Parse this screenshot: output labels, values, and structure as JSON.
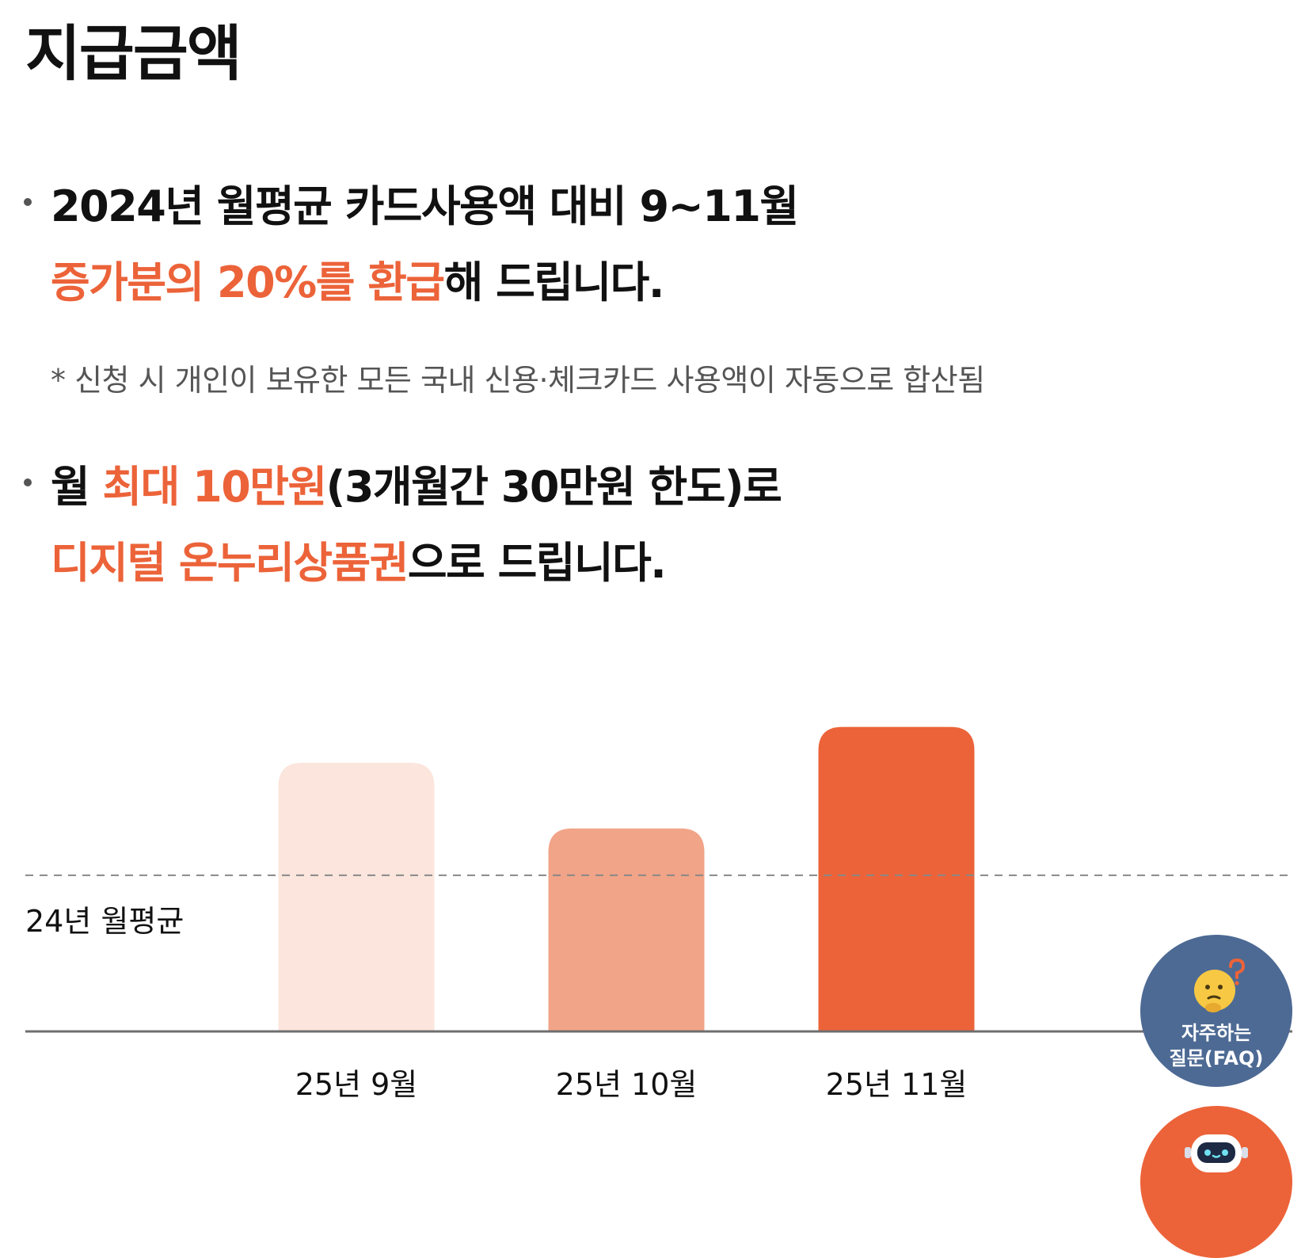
{
  "page": {
    "title": "지급금액"
  },
  "bullets": [
    {
      "line1": [
        {
          "text": "2024년 월평균 카드사용액 대비 9~11월",
          "highlight": false
        }
      ],
      "line2": [
        {
          "text": "증가분의 20%를 환급",
          "highlight": true
        },
        {
          "text": "해 드립니다.",
          "highlight": false
        }
      ]
    },
    {
      "line1": [
        {
          "text": "월 ",
          "highlight": false
        },
        {
          "text": "최대 10만원",
          "highlight": true
        },
        {
          "text": "(3개월간 30만원 한도)로",
          "highlight": false
        }
      ],
      "line2": [
        {
          "text": "디지털 온누리상품권",
          "highlight": true
        },
        {
          "text": "으로 드립니다.",
          "highlight": false
        }
      ]
    }
  ],
  "note": "* 신청 시 개인이 보유한 모든 국내 신용·체크카드 사용액이 자동으로 합산됨",
  "chart_data": {
    "type": "bar",
    "categories": [
      "25년 9월",
      "25년 10월",
      "25년 11월"
    ],
    "values": [
      172,
      130,
      195
    ],
    "reference_line": {
      "label": "24년 월평균",
      "value": 100,
      "style": "dashed"
    },
    "ylim": [
      0,
      210
    ],
    "bar_colors": [
      "#FBE5DC",
      "#F1A488",
      "#EC6339"
    ],
    "grid": false,
    "axis_ticks_shown": false
  },
  "faq": {
    "label_line1": "자주하는",
    "label_line2": "질문(FAQ)",
    "icon": "thinking-face-icon"
  },
  "chatbot": {
    "icon": "robot-icon"
  },
  "colors": {
    "accent": "#EC6339",
    "faq_bg": "#4D6A94",
    "text": "#111111",
    "note": "#555555"
  }
}
